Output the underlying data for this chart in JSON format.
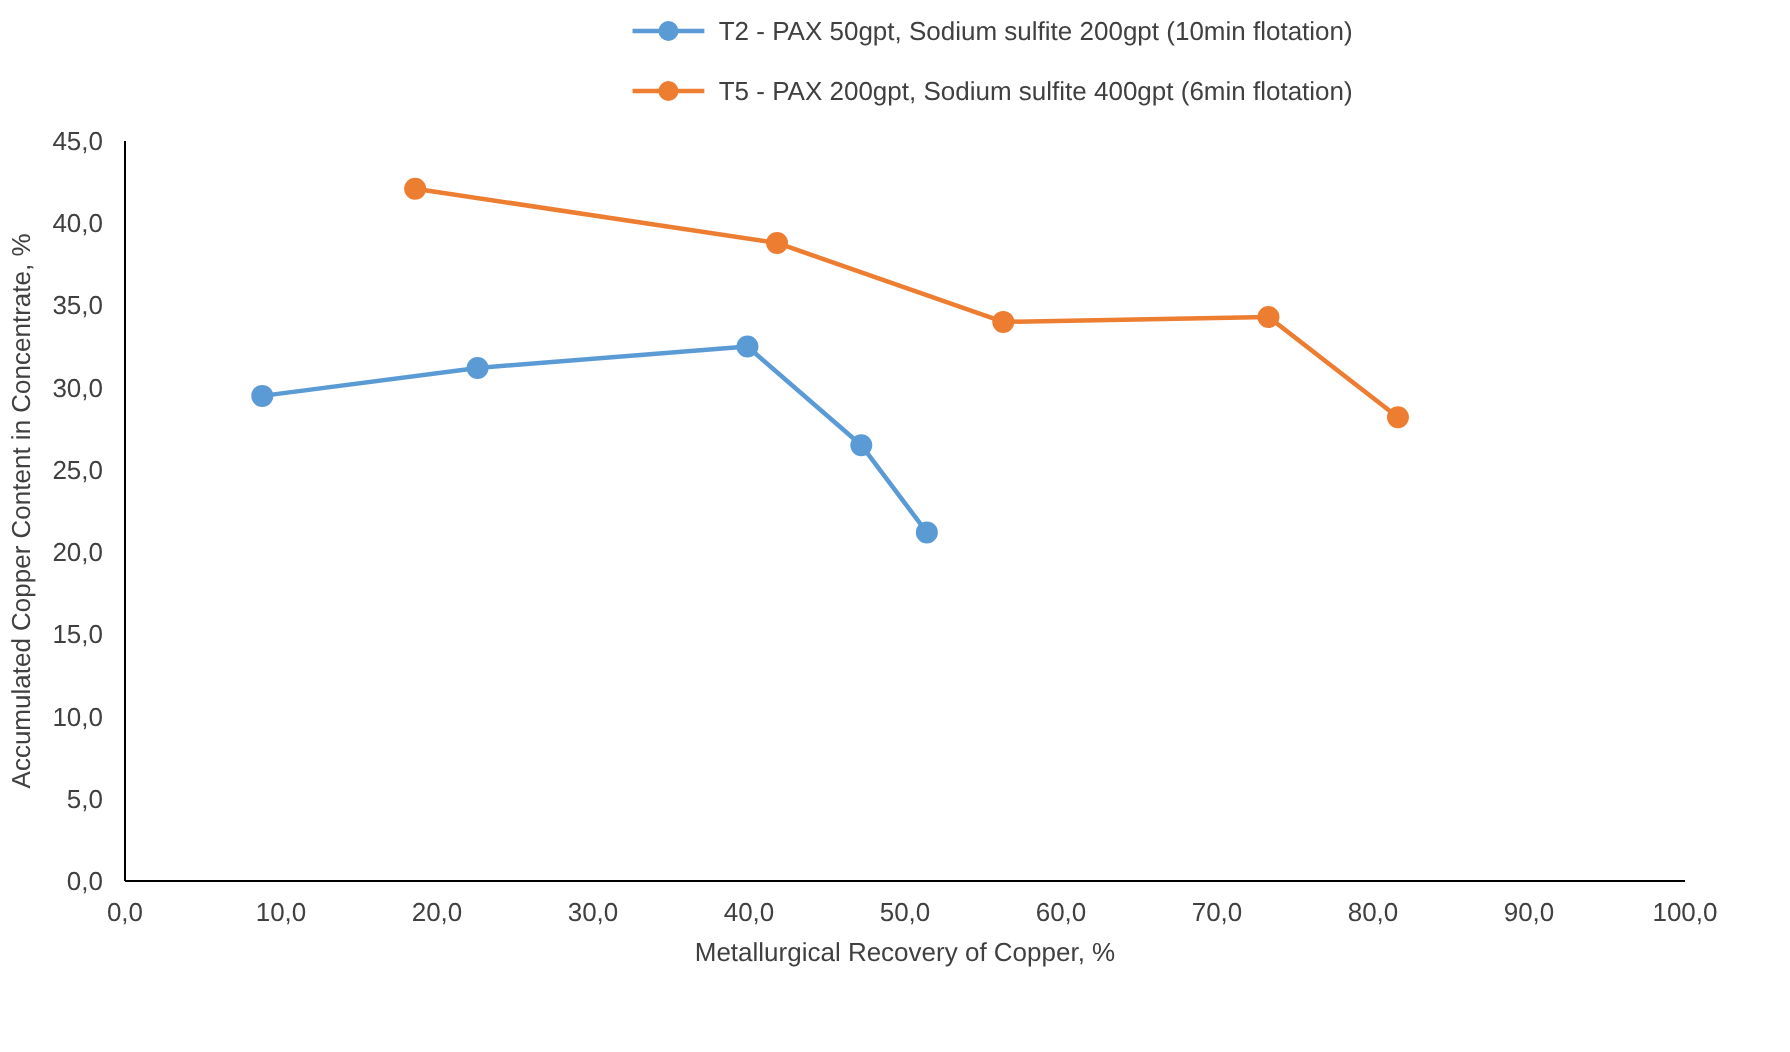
{
  "chart_data": {
    "type": "line",
    "xlabel": "Metallurgical Recovery of Copper, %",
    "ylabel": "Accumulated Copper Content in Concentrate, %",
    "series": [
      {
        "name": "T2 - PAX 50gpt, Sodium sulfite 200gpt (10min flotation)",
        "color": "#5b9bd5",
        "x": [
          8.8,
          22.6,
          39.9,
          47.2,
          51.4
        ],
        "values": [
          29.5,
          31.2,
          32.5,
          26.5,
          21.2
        ]
      },
      {
        "name": "T5 - PAX 200gpt, Sodium sulfite 400gpt (6min flotation)",
        "color": "#ed7d31",
        "x": [
          18.6,
          41.8,
          56.3,
          73.3,
          81.6
        ],
        "values": [
          42.1,
          38.8,
          34.0,
          34.3,
          28.2
        ]
      }
    ],
    "xlim": [
      0,
      100
    ],
    "ylim": [
      0,
      45
    ],
    "xticks": [
      {
        "value": 0,
        "label": "0,0"
      },
      {
        "value": 10,
        "label": "10,0"
      },
      {
        "value": 20,
        "label": "20,0"
      },
      {
        "value": 30,
        "label": "30,0"
      },
      {
        "value": 40,
        "label": "40,0"
      },
      {
        "value": 50,
        "label": "50,0"
      },
      {
        "value": 60,
        "label": "60,0"
      },
      {
        "value": 70,
        "label": "70,0"
      },
      {
        "value": 80,
        "label": "80,0"
      },
      {
        "value": 90,
        "label": "90,0"
      },
      {
        "value": 100,
        "label": "100,0"
      }
    ],
    "yticks": [
      {
        "value": 0,
        "label": "0,0"
      },
      {
        "value": 5,
        "label": "5,0"
      },
      {
        "value": 10,
        "label": "10,0"
      },
      {
        "value": 15,
        "label": "15,0"
      },
      {
        "value": 20,
        "label": "20,0"
      },
      {
        "value": 25,
        "label": "25,0"
      },
      {
        "value": 30,
        "label": "30,0"
      },
      {
        "value": 35,
        "label": "35,0"
      },
      {
        "value": 40,
        "label": "40,0"
      },
      {
        "value": 45,
        "label": "45,0"
      }
    ],
    "grid": false,
    "legend": "top",
    "marker": "circle",
    "line_style": "solid"
  }
}
